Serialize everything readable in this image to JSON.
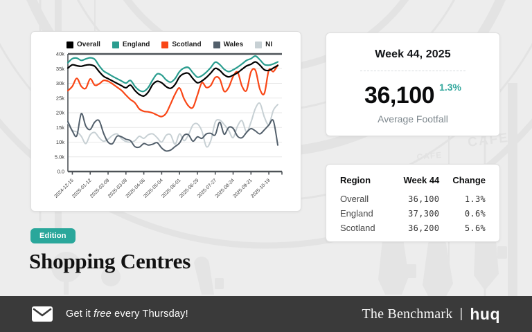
{
  "badge": {
    "label": "Edition"
  },
  "title": "Shopping Centres",
  "summary": {
    "week_label": "Week 44, 2025",
    "value": "36,100",
    "change": "1.3%",
    "metric_label": "Average Footfall"
  },
  "table": {
    "columns": [
      "Region",
      "Week 44",
      "Change"
    ],
    "rows": [
      [
        "Overall",
        "36,100",
        "1.3%"
      ],
      [
        "England",
        "37,300",
        "0.6%"
      ],
      [
        "Scotland",
        "36,200",
        "5.6%"
      ]
    ]
  },
  "footer": {
    "cta_prefix": "Get it ",
    "cta_italic": "free",
    "cta_suffix": " every Thursday!",
    "brand": "The Benchmark",
    "separator": "|",
    "logo": "huq"
  },
  "colors": {
    "accent_teal": "#2aa79b",
    "change_teal": "#35a89e",
    "footer_bg": "#3a3a3a",
    "grid": "#e7e7e7",
    "axis": "#4d5257"
  },
  "chart_data": {
    "type": "line",
    "title": "",
    "xlabel": "",
    "ylabel": "",
    "ylim": [
      0,
      40000
    ],
    "grid": true,
    "legend_position": "top",
    "y_ticks": [
      {
        "v": 0,
        "label": "0.0"
      },
      {
        "v": 5000,
        "label": "5.0k"
      },
      {
        "v": 10000,
        "label": "10k"
      },
      {
        "v": 15000,
        "label": "15k"
      },
      {
        "v": 20000,
        "label": "20k"
      },
      {
        "v": 25000,
        "label": "25k"
      },
      {
        "v": 30000,
        "label": "30k"
      },
      {
        "v": 35000,
        "label": "35k"
      },
      {
        "v": 40000,
        "label": "40k"
      }
    ],
    "x_ticks": [
      {
        "i": 1,
        "label": "2024-12-15"
      },
      {
        "i": 5,
        "label": "2025-01-12"
      },
      {
        "i": 9,
        "label": "2025-02-09"
      },
      {
        "i": 13,
        "label": "2025-03-09"
      },
      {
        "i": 17,
        "label": "2025-04-06"
      },
      {
        "i": 21,
        "label": "2025-05-04"
      },
      {
        "i": 25,
        "label": "2025-06-01"
      },
      {
        "i": 29,
        "label": "2025-06-29"
      },
      {
        "i": 33,
        "label": "2025-07-27"
      },
      {
        "i": 37,
        "label": "2025-08-24"
      },
      {
        "i": 41,
        "label": "2025-09-21"
      },
      {
        "i": 45,
        "label": "2025-10-19"
      }
    ],
    "series": [
      {
        "name": "Overall",
        "color": "#000000",
        "values": [
          35200,
          36300,
          36000,
          35800,
          36200,
          36300,
          35800,
          34000,
          32400,
          31600,
          30800,
          30000,
          29200,
          28500,
          29400,
          27600,
          26200,
          25700,
          27000,
          29600,
          30700,
          30200,
          28900,
          28300,
          29600,
          32200,
          33300,
          33400,
          31600,
          30200,
          30800,
          32000,
          33500,
          35100,
          34400,
          32900,
          32200,
          32800,
          33600,
          34800,
          35900,
          36500,
          37300,
          36200,
          34600,
          34400,
          35200,
          36100
        ]
      },
      {
        "name": "England",
        "color": "#2a9d8f",
        "values": [
          37000,
          38400,
          38600,
          37800,
          38300,
          38700,
          38200,
          36000,
          34200,
          33300,
          32400,
          31600,
          30800,
          30100,
          31000,
          29000,
          27600,
          27300,
          28600,
          31200,
          33200,
          32800,
          31200,
          30400,
          31600,
          34000,
          35200,
          35400,
          33600,
          32100,
          32600,
          33800,
          35400,
          37200,
          36400,
          34800,
          34000,
          34600,
          35500,
          36600,
          37800,
          38400,
          39300,
          38000,
          36400,
          36200,
          36600,
          37300
        ]
      },
      {
        "name": "Scotland",
        "color": "#f94616",
        "values": [
          27500,
          29000,
          31700,
          29000,
          28300,
          31500,
          29400,
          29800,
          31000,
          30700,
          29800,
          28700,
          27600,
          26000,
          24500,
          23400,
          21300,
          20500,
          20300,
          19900,
          19200,
          18700,
          19800,
          23000,
          26300,
          28400,
          24800,
          22300,
          21800,
          26000,
          30200,
          28600,
          29300,
          32000,
          31500,
          27300,
          28600,
          32300,
          33800,
          29000,
          27600,
          33900,
          34400,
          28000,
          26600,
          34500,
          34000,
          36200
        ]
      },
      {
        "name": "Wales",
        "color": "#525f6b",
        "values": [
          17000,
          13800,
          12200,
          19700,
          15500,
          14300,
          16800,
          17300,
          13000,
          10000,
          9500,
          12000,
          11800,
          11000,
          10500,
          8500,
          8300,
          9500,
          9000,
          9300,
          9800,
          8000,
          7000,
          7300,
          8500,
          9700,
          12300,
          12500,
          10300,
          11800,
          11300,
          12800,
          13000,
          12500,
          16800,
          12700,
          15000,
          14700,
          12000,
          11500,
          13300,
          14600,
          13800,
          12800,
          14200,
          15800,
          17300,
          9000
        ]
      },
      {
        "name": "NI",
        "color": "#c7d0d4",
        "values": [
          16500,
          14000,
          13500,
          12000,
          9500,
          12500,
          13300,
          11500,
          10300,
          11000,
          12300,
          12800,
          11200,
          10200,
          10000,
          10500,
          12000,
          11300,
          12500,
          12800,
          11500,
          10000,
          12300,
          12500,
          9300,
          12800,
          10500,
          12500,
          15800,
          16200,
          13800,
          8500,
          10500,
          16800,
          17500,
          16000,
          14000,
          11500,
          15500,
          17300,
          13500,
          16800,
          21500,
          23200,
          18500,
          16000,
          20800,
          22800
        ]
      }
    ]
  }
}
